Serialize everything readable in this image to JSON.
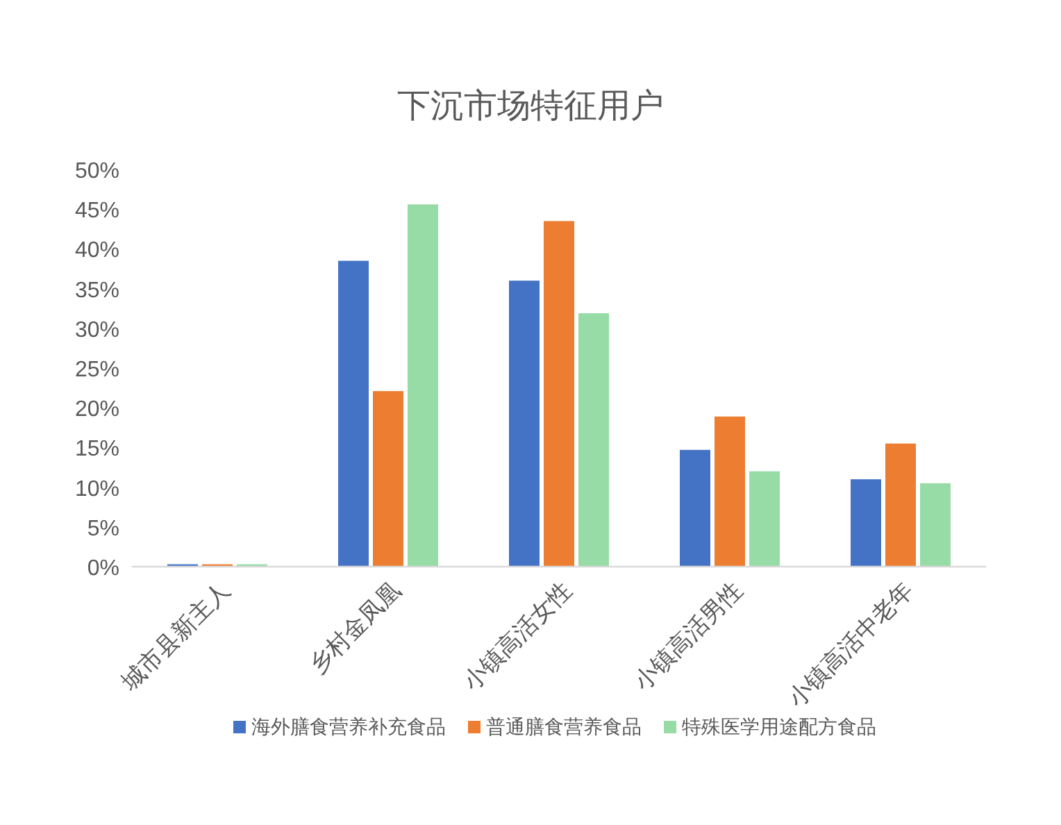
{
  "chart_data": {
    "type": "bar",
    "title": "下沉市场特征用户",
    "categories": [
      "城市县新主人",
      "乡村金凤凰",
      "小镇高活女性",
      "小镇高活男性",
      "小镇高活中老年"
    ],
    "series": [
      {
        "name": "海外膳食营养补充食品",
        "color": "#4472c4",
        "values": [
          0.3,
          38.5,
          36.0,
          14.7,
          11.0
        ]
      },
      {
        "name": "普通膳食营养食品",
        "color": "#ed7d31",
        "values": [
          0.3,
          22.1,
          43.5,
          18.9,
          15.5
        ]
      },
      {
        "name": "特殊医学用途配方食品",
        "color": "#97dba6",
        "values": [
          0.3,
          45.6,
          31.9,
          12.0,
          10.5
        ]
      }
    ],
    "ylim": [
      0,
      50
    ],
    "yticks": [
      {
        "value": 0,
        "label": "0%"
      },
      {
        "value": 5,
        "label": "5%"
      },
      {
        "value": 10,
        "label": "10%"
      },
      {
        "value": 15,
        "label": "15%"
      },
      {
        "value": 20,
        "label": "20%"
      },
      {
        "value": 25,
        "label": "25%"
      },
      {
        "value": 30,
        "label": "30%"
      },
      {
        "value": 35,
        "label": "35%"
      },
      {
        "value": 40,
        "label": "40%"
      },
      {
        "value": 45,
        "label": "45%"
      },
      {
        "value": 50,
        "label": "50%"
      }
    ],
    "grid": false,
    "legend": "bottom"
  }
}
